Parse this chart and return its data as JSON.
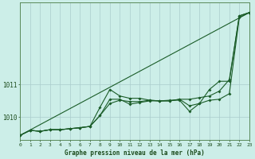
{
  "title": "Graphe pression niveau de la mer (hPa)",
  "background_color": "#cceee8",
  "grid_color": "#aacccc",
  "line_color": "#1a5c28",
  "xlim": [
    0,
    23
  ],
  "ylim": [
    1009.3,
    1013.5
  ],
  "xticks": [
    0,
    1,
    2,
    3,
    4,
    5,
    6,
    7,
    8,
    9,
    10,
    11,
    12,
    13,
    14,
    15,
    16,
    17,
    18,
    19,
    20,
    21,
    22,
    23
  ],
  "ytick_positions": [
    1010,
    1011
  ],
  "ytick_labels": [
    "1010",
    "1011"
  ],
  "series_no_marker": [
    [
      0,
      1009.45
    ],
    [
      23,
      1013.2
    ]
  ],
  "series": [
    [
      1009.45,
      1009.6,
      1009.57,
      1009.62,
      1009.62,
      1009.65,
      1009.68,
      1009.72,
      1010.05,
      1010.55,
      1010.55,
      1010.4,
      1010.45,
      1010.5,
      1010.5,
      1010.5,
      1010.55,
      1010.55,
      1010.6,
      1010.65,
      1010.8,
      1011.15,
      1013.1,
      1013.2
    ],
    [
      1009.45,
      1009.6,
      1009.57,
      1009.62,
      1009.62,
      1009.65,
      1009.68,
      1009.72,
      1010.3,
      1010.85,
      1010.65,
      1010.58,
      1010.58,
      1010.52,
      1010.5,
      1010.52,
      1010.52,
      1010.18,
      1010.42,
      1010.85,
      1011.1,
      1011.1,
      1013.1,
      1013.2
    ],
    [
      1009.45,
      1009.6,
      1009.57,
      1009.62,
      1009.62,
      1009.65,
      1009.68,
      1009.72,
      1010.05,
      1010.42,
      1010.52,
      1010.48,
      1010.48,
      1010.52,
      1010.5,
      1010.5,
      1010.55,
      1010.35,
      1010.42,
      1010.52,
      1010.55,
      1010.72,
      1013.05,
      1013.2
    ]
  ]
}
